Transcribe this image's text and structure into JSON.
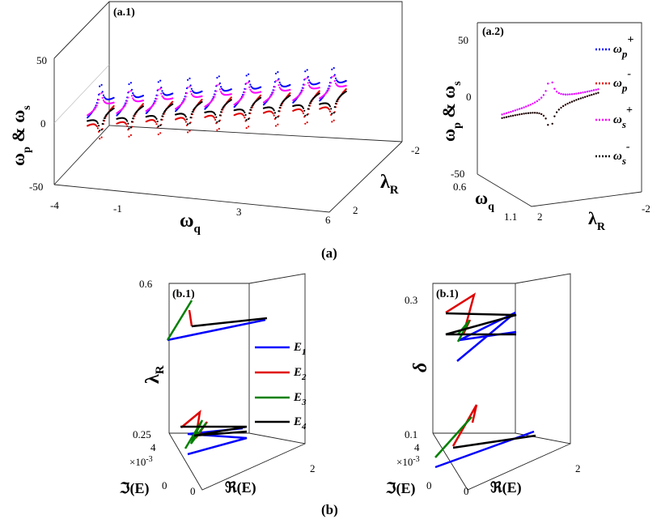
{
  "chart_data": [
    {
      "id": "a1",
      "type": "scatter3d",
      "panel_label": "(a.1)",
      "zlabel": "ω_p & ω_s",
      "xlabel": "ω_q",
      "ylabel": "λ_R",
      "xlim": [
        -4,
        6
      ],
      "ylim": [
        2,
        -2
      ],
      "zlim": [
        -50,
        50
      ],
      "x_ticks": [
        "-4",
        "-1",
        "3",
        "6"
      ],
      "y_ticks": [
        "2",
        "-2"
      ],
      "z_ticks": [
        "50",
        "0",
        "-50"
      ],
      "resonance_centers_wq": [
        -3.2,
        -2.1,
        -1.0,
        0.1,
        1.2,
        2.3,
        3.4,
        4.5,
        5.5
      ],
      "series": [
        {
          "name": "ω_p^+",
          "color": "#0000ff"
        },
        {
          "name": "ω_p^-",
          "color": "#e00000"
        },
        {
          "name": "ω_s^+",
          "color": "#ff00ff"
        },
        {
          "name": "ω_s^-",
          "color": "#000000"
        }
      ]
    },
    {
      "id": "a2",
      "type": "scatter3d",
      "panel_label": "(a.2)",
      "zlabel": "ω_p & ω_s",
      "xlabel": "ω_q",
      "ylabel": "λ_R",
      "xlim": [
        0.6,
        1.1
      ],
      "ylim": [
        2,
        -2
      ],
      "zlim": [
        -50,
        50
      ],
      "x_ticks": [
        "0.6",
        "1.1"
      ],
      "y_ticks": [
        "2",
        "-2"
      ],
      "z_ticks": [
        "50",
        "0",
        "-50"
      ],
      "legend": [
        {
          "base": "ω",
          "sub": "p",
          "sup": "+",
          "color": "#0000ff"
        },
        {
          "base": "ω",
          "sub": "p",
          "sup": "-",
          "color": "#e00000"
        },
        {
          "base": "ω",
          "sub": "s",
          "sup": "+",
          "color": "#ff00ff"
        },
        {
          "base": "ω",
          "sub": "s",
          "sup": "-",
          "color": "#000000"
        }
      ]
    },
    {
      "id": "b1",
      "type": "line3d",
      "panel_label": "(b.1)",
      "zlabel": "λ_R",
      "xlabel": "ℜ(E)",
      "ylabel": "ℑ(E)",
      "exponent_label": "×10",
      "exponent_power": "-3",
      "zlim": [
        0.25,
        0.6
      ],
      "z_ticks": [
        "0.6",
        "0.25"
      ],
      "x_ticks": [
        "0",
        "2"
      ],
      "y_ticks": [
        "4",
        "0"
      ],
      "legend": [
        {
          "base": "E",
          "sub": "1",
          "color": "#0000ff"
        },
        {
          "base": "E",
          "sub": "2",
          "color": "#e00000"
        },
        {
          "base": "E",
          "sub": "3",
          "color": "#008000"
        },
        {
          "base": "E",
          "sub": "4",
          "color": "#000000"
        }
      ]
    },
    {
      "id": "b2",
      "type": "line3d",
      "panel_label": "(b.1)",
      "zlabel": "δ",
      "xlabel": "ℜ(E)",
      "ylabel": "ℑ(E)",
      "exponent_label": "×10",
      "exponent_power": "-3",
      "zlim": [
        0.1,
        0.3
      ],
      "z_ticks": [
        "0.3",
        "0.1"
      ],
      "x_ticks": [
        "0",
        "2"
      ],
      "y_ticks": [
        "4",
        "0"
      ]
    }
  ],
  "captions": {
    "a": "(a)",
    "b": "(b)"
  }
}
